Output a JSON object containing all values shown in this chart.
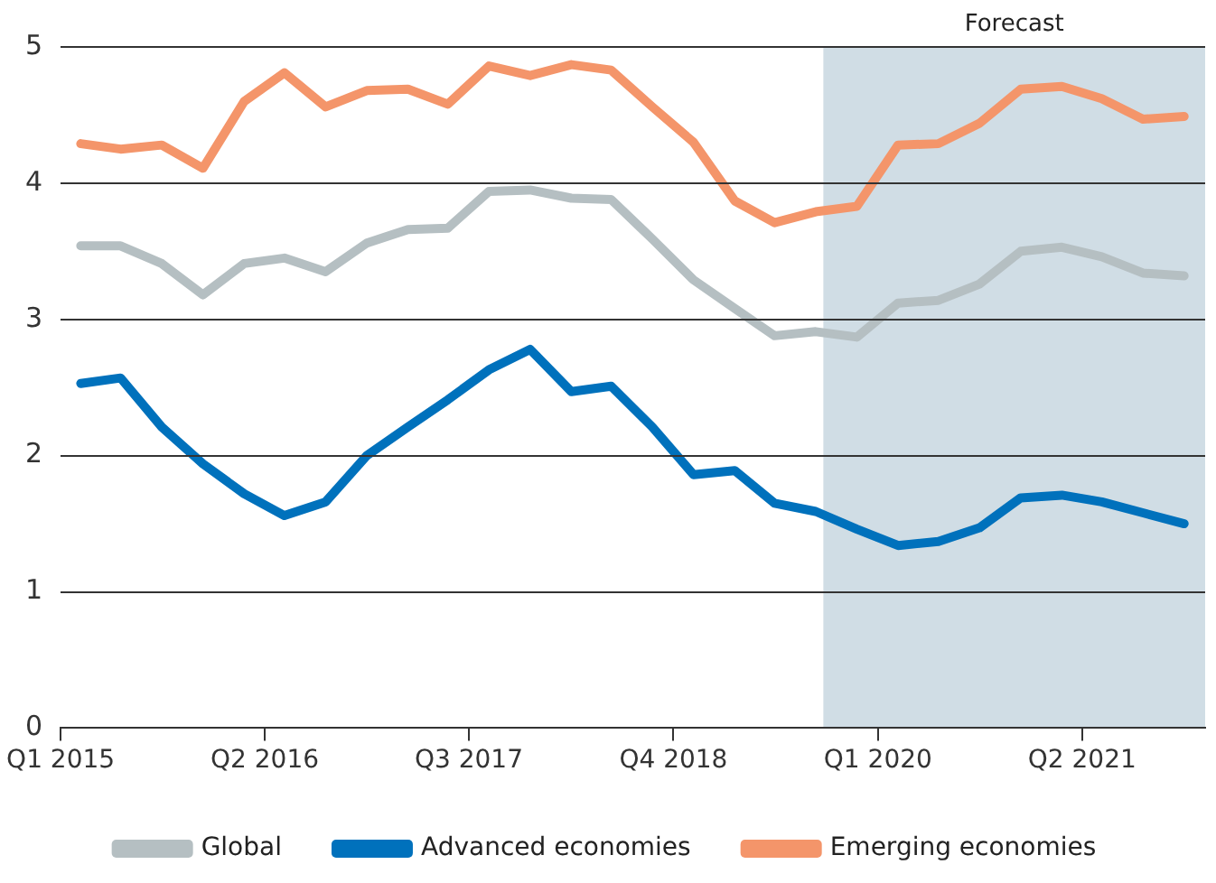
{
  "chart_data": {
    "type": "line",
    "x": [
      "2015-02-15",
      "2015-05-15",
      "2015-08-15",
      "2015-11-15",
      "2016-02-15",
      "2016-05-15",
      "2016-08-15",
      "2016-11-15",
      "2017-02-15",
      "2017-05-15",
      "2017-08-15",
      "2017-11-15",
      "2018-02-15",
      "2018-05-15",
      "2018-08-15",
      "2018-11-15",
      "2019-02-15",
      "2019-05-15",
      "2019-08-15",
      "2019-11-15",
      "2020-02-15",
      "2020-05-15",
      "2020-08-15",
      "2020-11-15",
      "2021-02-15",
      "2021-05-15",
      "2021-08-15",
      "2021-11-15"
    ],
    "series": [
      {
        "name": "Global",
        "color": "#b5bfc2",
        "values": [
          3.54,
          3.54,
          3.41,
          3.18,
          3.41,
          3.45,
          3.35,
          3.56,
          3.66,
          3.67,
          3.94,
          3.95,
          3.89,
          3.88,
          3.59,
          3.29,
          3.08,
          2.88,
          2.91,
          2.87,
          3.12,
          3.14,
          3.26,
          3.5,
          3.53,
          3.46,
          3.34,
          3.32
        ]
      },
      {
        "name": "Advanced economies",
        "color": "#0071bc",
        "values": [
          2.53,
          2.57,
          2.21,
          1.94,
          1.72,
          1.56,
          1.66,
          2.0,
          2.21,
          2.41,
          2.63,
          2.78,
          2.47,
          2.51,
          2.21,
          1.86,
          1.89,
          1.65,
          1.59,
          1.46,
          1.34,
          1.37,
          1.47,
          1.69,
          1.71,
          1.66,
          1.58,
          1.5
        ]
      },
      {
        "name": "Emerging economies",
        "color": "#f4956a",
        "values": [
          4.29,
          4.25,
          4.28,
          4.11,
          4.6,
          4.81,
          4.56,
          4.68,
          4.69,
          4.58,
          4.86,
          4.79,
          4.87,
          4.83,
          4.56,
          4.3,
          3.87,
          3.71,
          3.79,
          3.83,
          4.28,
          4.29,
          4.44,
          4.69,
          4.71,
          4.62,
          4.47,
          4.49
        ]
      }
    ],
    "xlim": [
      "2015-01-01",
      "2022-01-01"
    ],
    "xticks": [
      {
        "value": "2015-01-01",
        "label": "Q1 2015"
      },
      {
        "value": "2016-04-01",
        "label": "Q2 2016"
      },
      {
        "value": "2017-07-01",
        "label": "Q3 2017"
      },
      {
        "value": "2018-10-01",
        "label": "Q4 2018"
      },
      {
        "value": "2020-01-01",
        "label": "Q1 2020"
      },
      {
        "value": "2021-04-01",
        "label": "Q2 2021"
      }
    ],
    "ylim": [
      0,
      5
    ],
    "yticks": [
      0,
      1,
      2,
      3,
      4,
      5
    ],
    "bands": [
      {
        "axis": "x",
        "from": "2019-09-01",
        "to": "2022-01-01",
        "label": "Forecast",
        "color": "#d0dde5"
      }
    ],
    "grid": "y",
    "legend": "bottom",
    "marker": "none",
    "line_style": "solid"
  }
}
